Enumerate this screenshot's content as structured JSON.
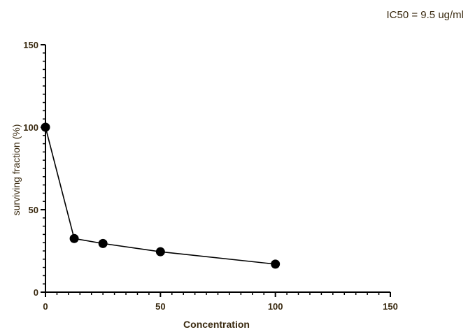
{
  "chart_data": {
    "type": "line",
    "annotation": "IC50 = 9.5 ug/ml",
    "xlabel": "Concentration",
    "ylabel": "surviving fraction (%)",
    "xlim": [
      0,
      150
    ],
    "ylim": [
      0,
      150
    ],
    "x_ticks": [
      "0",
      "50",
      "100",
      "150"
    ],
    "y_ticks": [
      "0",
      "50",
      "100",
      "150"
    ],
    "grid": false,
    "series": [
      {
        "x": [
          0,
          12.5,
          25,
          50,
          100
        ],
        "y": [
          100,
          32.5,
          29.5,
          24.5,
          17
        ]
      }
    ]
  }
}
